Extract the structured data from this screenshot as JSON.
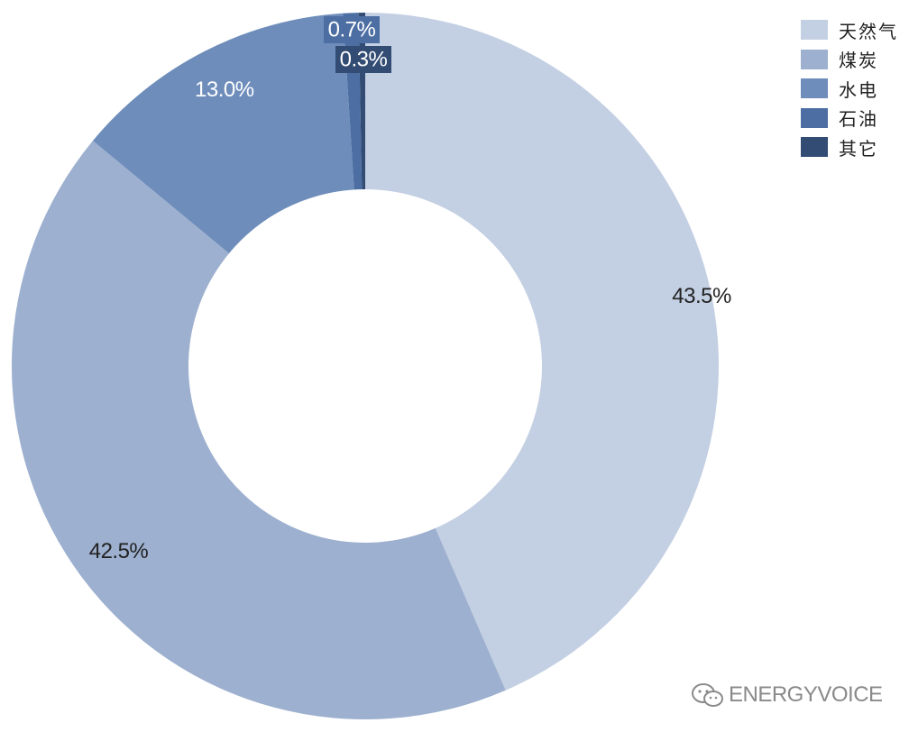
{
  "chart_data": {
    "type": "pie",
    "style": "donut",
    "slices": [
      {
        "name": "天然气",
        "value": 43.5,
        "label": "43.5%",
        "color": "#c3cfe2"
      },
      {
        "name": "煤炭",
        "value": 42.5,
        "label": "42.5%",
        "color": "#9db0cf"
      },
      {
        "name": "水电",
        "value": 13.0,
        "label": "13.0%",
        "color": "#6e8dbb"
      },
      {
        "name": "石油",
        "value": 0.7,
        "label": "0.7%",
        "color": "#4c6ea3"
      },
      {
        "name": "其它",
        "value": 0.3,
        "label": "0.3%",
        "color": "#324c74"
      }
    ],
    "legend_position": "top-right",
    "title": ""
  },
  "watermark": {
    "text": "ENERGYVOICE",
    "icon": "wechat-icon"
  }
}
